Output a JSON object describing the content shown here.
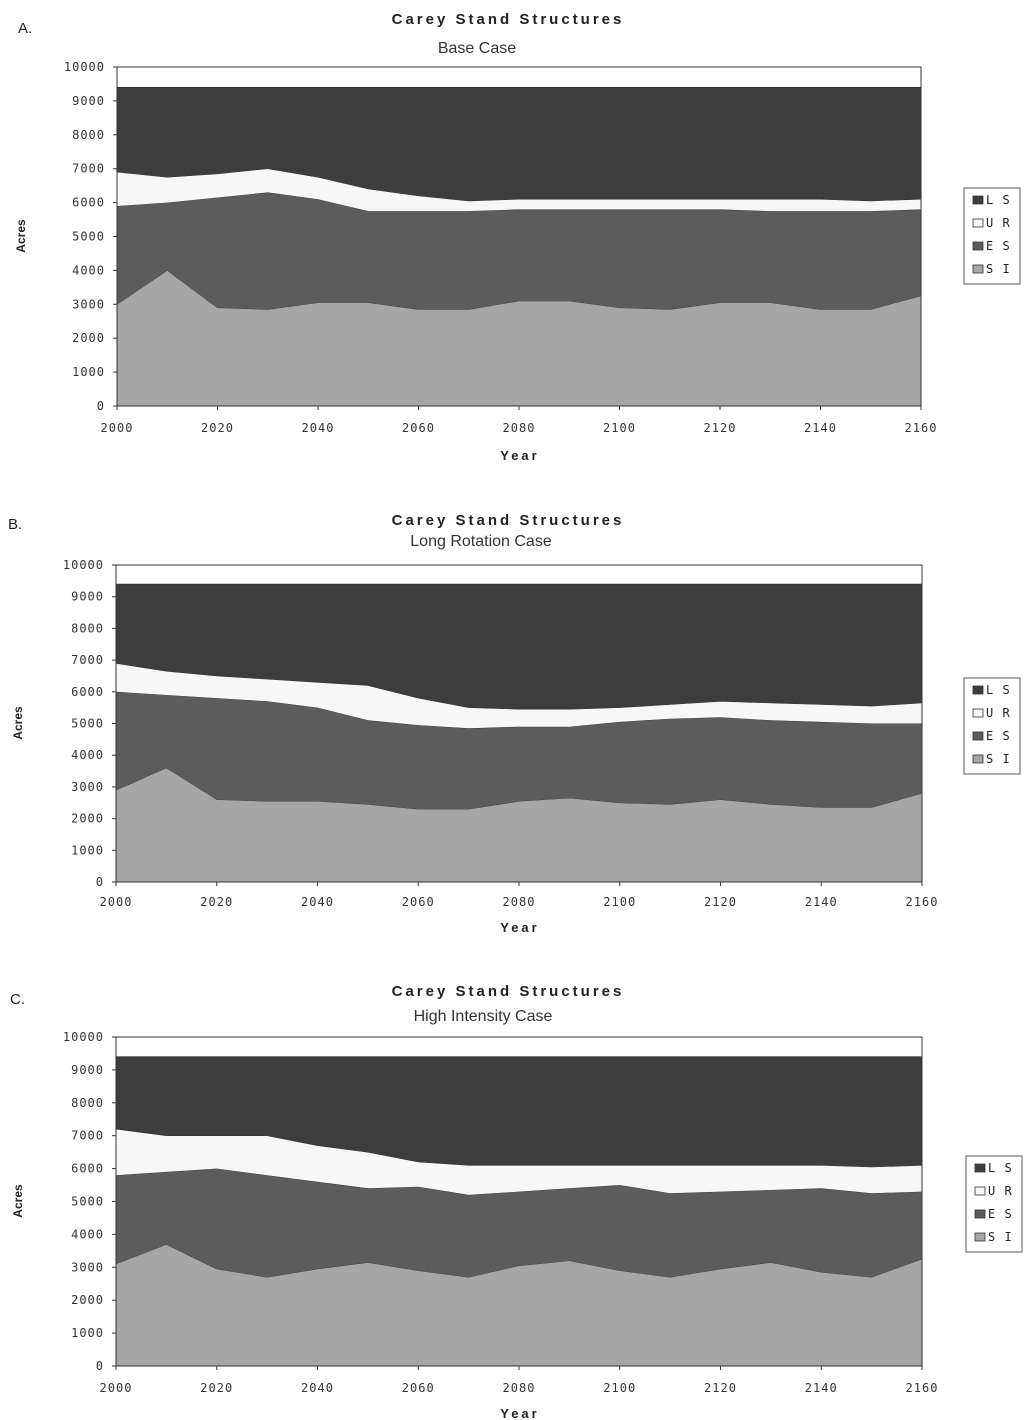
{
  "colors": {
    "LS": "#3d3d3d",
    "UR": "#f7f7f7",
    "ES": "#5c5c5c",
    "SI": "#a6a6a6"
  },
  "chart_data": [
    {
      "type": "area",
      "panel_letter": "A.",
      "title": "Carey Stand Structures",
      "subtitle": "Base Case",
      "xlabel": "Year",
      "ylabel": "Acres",
      "xlim": [
        2000,
        2160
      ],
      "ylim": [
        0,
        10000
      ],
      "xticks": [
        2000,
        2020,
        2040,
        2060,
        2080,
        2100,
        2120,
        2140,
        2160
      ],
      "yticks": [
        0,
        1000,
        2000,
        3000,
        4000,
        5000,
        6000,
        7000,
        8000,
        9000,
        10000
      ],
      "stacked": true,
      "legend_position": "right",
      "x": [
        2000,
        2010,
        2020,
        2030,
        2040,
        2050,
        2060,
        2070,
        2080,
        2090,
        2100,
        2110,
        2120,
        2130,
        2140,
        2150,
        2160
      ],
      "series": [
        {
          "name": "SI",
          "values": [
            3000,
            4000,
            2900,
            2850,
            3050,
            3050,
            2850,
            2850,
            3100,
            3100,
            2900,
            2850,
            3050,
            3050,
            2850,
            2850,
            3250
          ]
        },
        {
          "name": "ES",
          "values": [
            2900,
            2000,
            3250,
            3450,
            3050,
            2700,
            2900,
            2900,
            2700,
            2700,
            2900,
            2950,
            2750,
            2700,
            2900,
            2900,
            2550
          ]
        },
        {
          "name": "UR",
          "values": [
            1000,
            750,
            700,
            700,
            650,
            650,
            450,
            300,
            300,
            300,
            300,
            300,
            300,
            350,
            350,
            300,
            300
          ]
        },
        {
          "name": "LS",
          "values": [
            2500,
            2650,
            2550,
            2400,
            2650,
            3000,
            3200,
            3350,
            3300,
            3300,
            3300,
            3300,
            3300,
            3300,
            3300,
            3350,
            3300
          ]
        }
      ],
      "legend_entries": [
        "LS",
        "UR",
        "ES",
        "SI"
      ]
    },
    {
      "type": "area",
      "panel_letter": "B.",
      "title": "Carey Stand Structures",
      "subtitle": "Long Rotation Case",
      "xlabel": "Year",
      "ylabel": "Acres",
      "xlim": [
        2000,
        2160
      ],
      "ylim": [
        0,
        10000
      ],
      "xticks": [
        2000,
        2020,
        2040,
        2060,
        2080,
        2100,
        2120,
        2140,
        2160
      ],
      "yticks": [
        0,
        1000,
        2000,
        3000,
        4000,
        5000,
        6000,
        7000,
        8000,
        9000,
        10000
      ],
      "stacked": true,
      "legend_position": "right",
      "x": [
        2000,
        2010,
        2020,
        2030,
        2040,
        2050,
        2060,
        2070,
        2080,
        2090,
        2100,
        2110,
        2120,
        2130,
        2140,
        2150,
        2160
      ],
      "series": [
        {
          "name": "SI",
          "values": [
            2900,
            3600,
            2600,
            2550,
            2550,
            2450,
            2300,
            2300,
            2550,
            2650,
            2500,
            2450,
            2600,
            2450,
            2350,
            2350,
            2800
          ]
        },
        {
          "name": "ES",
          "values": [
            3100,
            2300,
            3200,
            3150,
            2950,
            2650,
            2650,
            2550,
            2350,
            2250,
            2550,
            2700,
            2600,
            2650,
            2700,
            2650,
            2200
          ]
        },
        {
          "name": "UR",
          "values": [
            900,
            750,
            700,
            700,
            800,
            1100,
            850,
            650,
            550,
            550,
            450,
            450,
            500,
            550,
            550,
            550,
            650
          ]
        },
        {
          "name": "LS",
          "values": [
            2500,
            2750,
            2900,
            3000,
            3100,
            3200,
            3600,
            3900,
            3950,
            3950,
            3900,
            3800,
            3700,
            3750,
            3800,
            3850,
            3750
          ]
        }
      ],
      "legend_entries": [
        "LS",
        "UR",
        "ES",
        "SI"
      ]
    },
    {
      "type": "area",
      "panel_letter": "C.",
      "title": "Carey Stand Structures",
      "subtitle": "High Intensity Case",
      "xlabel": "Year",
      "ylabel": "Acres",
      "xlim": [
        2000,
        2160
      ],
      "ylim": [
        0,
        10000
      ],
      "xticks": [
        2000,
        2020,
        2040,
        2060,
        2080,
        2100,
        2120,
        2140,
        2160
      ],
      "yticks": [
        0,
        1000,
        2000,
        3000,
        4000,
        5000,
        6000,
        7000,
        8000,
        9000,
        10000
      ],
      "stacked": true,
      "legend_position": "right",
      "x": [
        2000,
        2010,
        2020,
        2030,
        2040,
        2050,
        2060,
        2070,
        2080,
        2090,
        2100,
        2110,
        2120,
        2130,
        2140,
        2150,
        2160
      ],
      "series": [
        {
          "name": "SI",
          "values": [
            3100,
            3700,
            2950,
            2700,
            2950,
            3150,
            2900,
            2700,
            3050,
            3200,
            2900,
            2700,
            2950,
            3150,
            2850,
            2700,
            3250
          ]
        },
        {
          "name": "ES",
          "values": [
            2700,
            2200,
            3050,
            3100,
            2650,
            2250,
            2550,
            2500,
            2250,
            2200,
            2600,
            2550,
            2350,
            2200,
            2550,
            2550,
            2050
          ]
        },
        {
          "name": "UR",
          "values": [
            1400,
            1100,
            1000,
            1200,
            1100,
            1100,
            750,
            900,
            800,
            700,
            600,
            850,
            800,
            750,
            700,
            800,
            800
          ]
        },
        {
          "name": "LS",
          "values": [
            2200,
            2400,
            2400,
            2400,
            2700,
            2900,
            3200,
            3300,
            3300,
            3300,
            3300,
            3300,
            3300,
            3300,
            3300,
            3350,
            3300
          ]
        }
      ],
      "legend_entries": [
        "LS",
        "UR",
        "ES",
        "SI"
      ]
    }
  ]
}
